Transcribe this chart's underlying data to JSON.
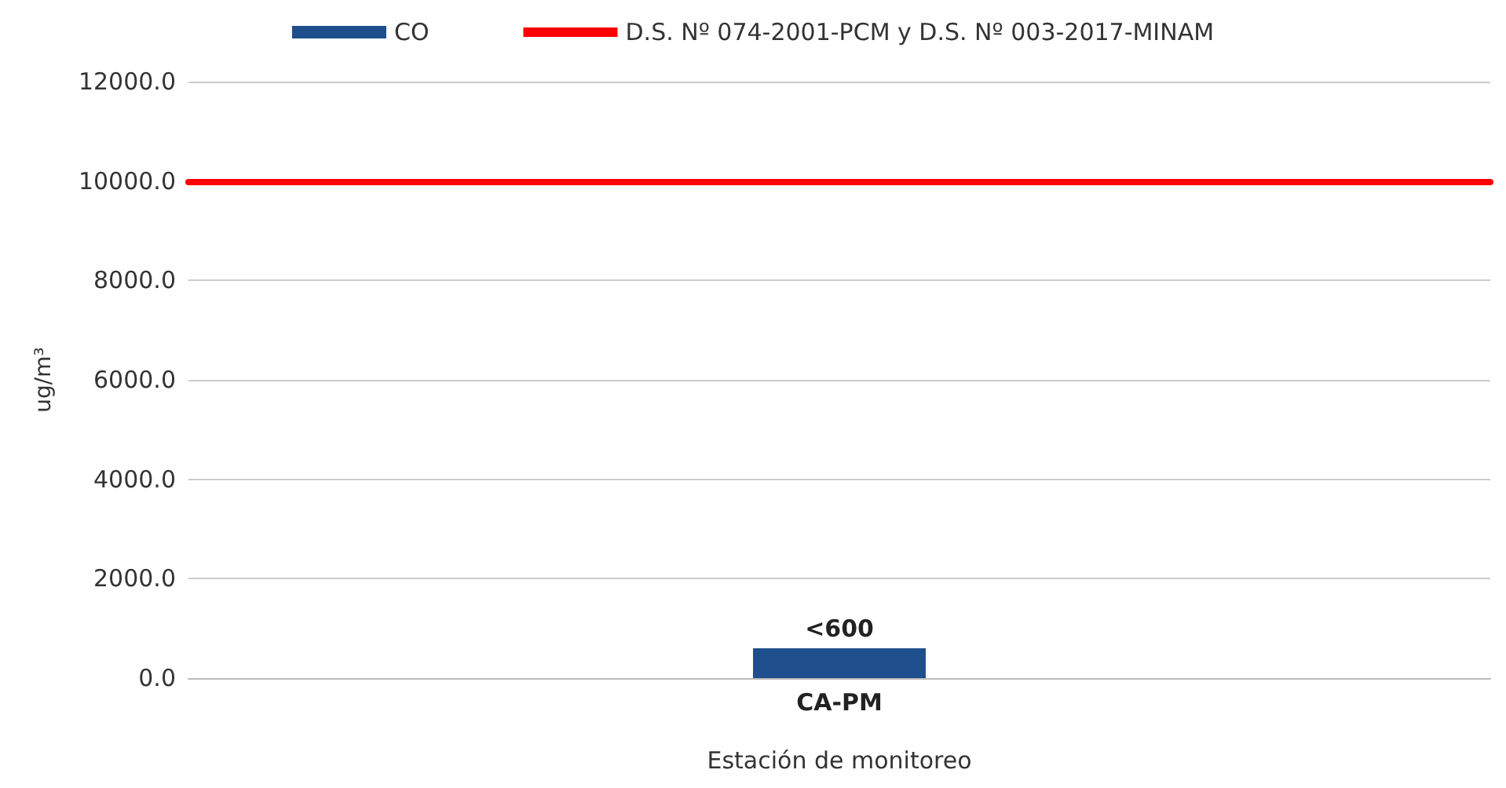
{
  "chart_data": {
    "type": "bar",
    "xlabel": "Estación de monitoreo",
    "ylabel": "ug/m³",
    "categories": [
      "CA-PM"
    ],
    "series": [
      {
        "name": "CO",
        "color": "#1f4e8c",
        "values": [
          600
        ],
        "value_labels": [
          "<600"
        ]
      }
    ],
    "ref_lines": [
      {
        "axis": "y",
        "value": 10000,
        "label": "D.S. Nº 074-2001-PCM y D.S. Nº 003-2017-MINAM",
        "color": "#ff0000",
        "line_style": "solid"
      }
    ],
    "ylim": [
      0,
      12000
    ],
    "yticks": [
      {
        "value": 0,
        "label": "0.0"
      },
      {
        "value": 2000,
        "label": "2000.0"
      },
      {
        "value": 4000,
        "label": "4000.0"
      },
      {
        "value": 6000,
        "label": "6000.0"
      },
      {
        "value": 8000,
        "label": "8000.0"
      },
      {
        "value": 10000,
        "label": "10000.0"
      },
      {
        "value": 12000,
        "label": "12000.0"
      }
    ],
    "grid": "y",
    "legend": "top"
  }
}
